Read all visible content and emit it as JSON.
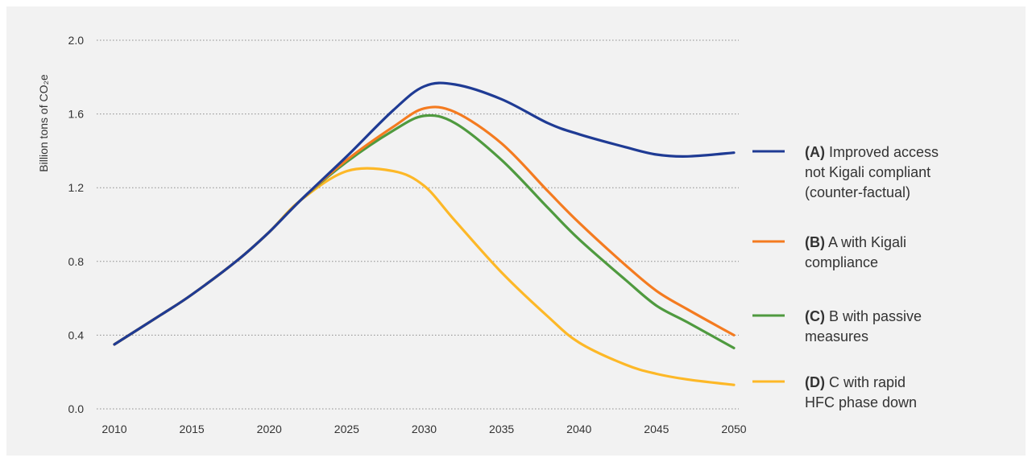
{
  "chart_data": {
    "type": "line",
    "ylabel": "Billion tons of CO₂e",
    "xlabel": "",
    "x": [
      2010,
      2013,
      2015,
      2018,
      2020,
      2022,
      2025,
      2028,
      2030,
      2032,
      2035,
      2038,
      2040,
      2043,
      2045,
      2047,
      2050
    ],
    "xticks": [
      "2010",
      "2015",
      "2020",
      "2025",
      "2030",
      "2035",
      "2040",
      "2045",
      "2050"
    ],
    "yticks": [
      "0.0",
      "0.4",
      "0.8",
      "1.2",
      "1.6",
      "2.0"
    ],
    "xlim": [
      2010,
      2050
    ],
    "ylim": [
      0,
      2.0
    ],
    "grid": "horizontal dotted",
    "legend_position": "right",
    "series": [
      {
        "key": "(A)",
        "label_lines": [
          "Improved access",
          "not Kigali compliant",
          "(counter-factual)"
        ],
        "color": "#1f3b94",
        "values": [
          0.35,
          0.51,
          0.62,
          0.81,
          0.96,
          1.13,
          1.37,
          1.62,
          1.75,
          1.76,
          1.68,
          1.55,
          1.49,
          1.42,
          1.38,
          1.37,
          1.39
        ]
      },
      {
        "key": "(B)",
        "label_lines": [
          "A with Kigali",
          "compliance"
        ],
        "color": "#f47b20",
        "values": [
          0.35,
          0.51,
          0.62,
          0.81,
          0.96,
          1.13,
          1.35,
          1.53,
          1.63,
          1.61,
          1.44,
          1.18,
          1.01,
          0.78,
          0.64,
          0.54,
          0.4
        ]
      },
      {
        "key": "(C)",
        "label_lines": [
          "B with passive",
          "measures"
        ],
        "color": "#4f9a3f",
        "values": [
          0.35,
          0.51,
          0.62,
          0.81,
          0.96,
          1.13,
          1.34,
          1.51,
          1.59,
          1.55,
          1.35,
          1.09,
          0.92,
          0.7,
          0.56,
          0.47,
          0.33
        ]
      },
      {
        "key": "(D)",
        "label_lines": [
          "C with rapid",
          "HFC phase down"
        ],
        "color": "#fdb827",
        "values": [
          0.35,
          0.51,
          0.62,
          0.81,
          0.96,
          1.13,
          1.29,
          1.29,
          1.21,
          1.02,
          0.74,
          0.5,
          0.36,
          0.24,
          0.19,
          0.16,
          0.13
        ]
      }
    ]
  }
}
